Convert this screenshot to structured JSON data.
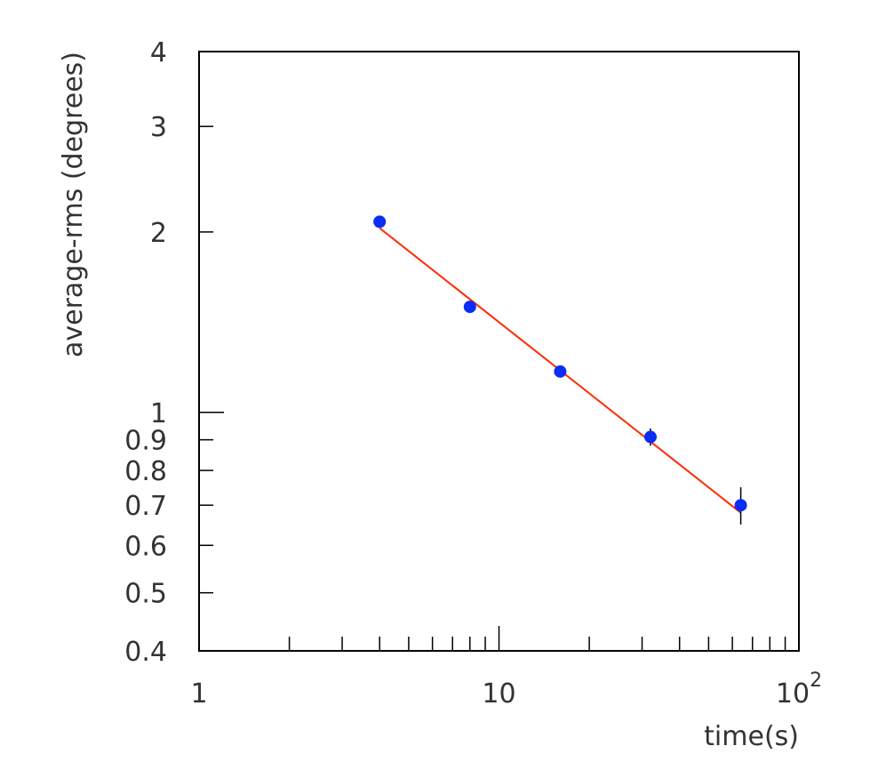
{
  "chart_data": {
    "type": "scatter",
    "title": "",
    "xlabel": "time(s)",
    "ylabel": "average-rms (degrees)",
    "x_scale": "log",
    "y_scale": "log",
    "xlim": [
      1,
      100
    ],
    "ylim": [
      0.4,
      4
    ],
    "grid": false,
    "x_tick_labels": [
      {
        "value": 1,
        "base": "1",
        "sup": ""
      },
      {
        "value": 10,
        "base": "10",
        "sup": ""
      },
      {
        "value": 100,
        "base": "10",
        "sup": "2"
      }
    ],
    "y_tick_labels": [
      {
        "value": 0.4,
        "label": "0.4"
      },
      {
        "value": 0.5,
        "label": "0.5"
      },
      {
        "value": 0.6,
        "label": "0.6"
      },
      {
        "value": 0.7,
        "label": "0.7"
      },
      {
        "value": 0.8,
        "label": "0.8"
      },
      {
        "value": 0.9,
        "label": "0.9"
      },
      {
        "value": 1,
        "label": "1"
      },
      {
        "value": 2,
        "label": "2"
      },
      {
        "value": 3,
        "label": "3"
      },
      {
        "value": 4,
        "label": "4"
      }
    ],
    "points": [
      {
        "x": 4,
        "y": 2.08,
        "err_low": 0.03,
        "err_high": 0.03
      },
      {
        "x": 8,
        "y": 1.5,
        "err_low": 0.02,
        "err_high": 0.02
      },
      {
        "x": 16,
        "y": 1.17,
        "err_low": 0.02,
        "err_high": 0.02
      },
      {
        "x": 32,
        "y": 0.91,
        "err_low": 0.03,
        "err_high": 0.03
      },
      {
        "x": 64,
        "y": 0.7,
        "err_low": 0.05,
        "err_high": 0.05
      }
    ],
    "fit_line": {
      "x": [
        4,
        64
      ],
      "y": [
        2.03,
        0.68
      ]
    },
    "colors": {
      "points": "#0a2cf5",
      "fit": "#ff2a00",
      "axes": "#000000",
      "text": "#333333"
    }
  }
}
